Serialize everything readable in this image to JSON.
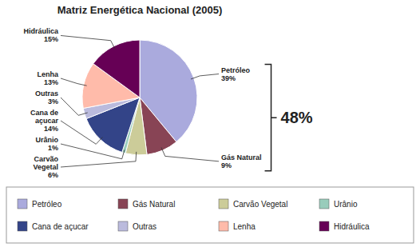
{
  "chart_data": {
    "type": "pie",
    "title": "Matriz Energética Nacional (2005)",
    "categories": [
      "Petróleo",
      "Gás Natural",
      "Carvão Vegetal",
      "Urânio",
      "Cana de açucar",
      "Outras",
      "Lenha",
      "Hidráulica"
    ],
    "values": [
      39,
      9,
      6,
      1,
      14,
      3,
      13,
      15
    ],
    "value_labels": [
      "Petróleo\n39%",
      "Gás Natural\n9%",
      "Carvão\nVegetal\n6%",
      "Urânio\n1%",
      "Cana de\naçucar\n14%",
      "Outras\n3%",
      "Lenha\n13%",
      "Hidráulica\n15%"
    ],
    "colors": [
      "#AAAADD",
      "#884455",
      "#CCCC99",
      "#99CCBB",
      "#334488",
      "#BBBBDD",
      "#FFBBAA",
      "#660055"
    ],
    "annotations": [
      "48%"
    ],
    "legend": "bottom",
    "data_labels": true
  }
}
